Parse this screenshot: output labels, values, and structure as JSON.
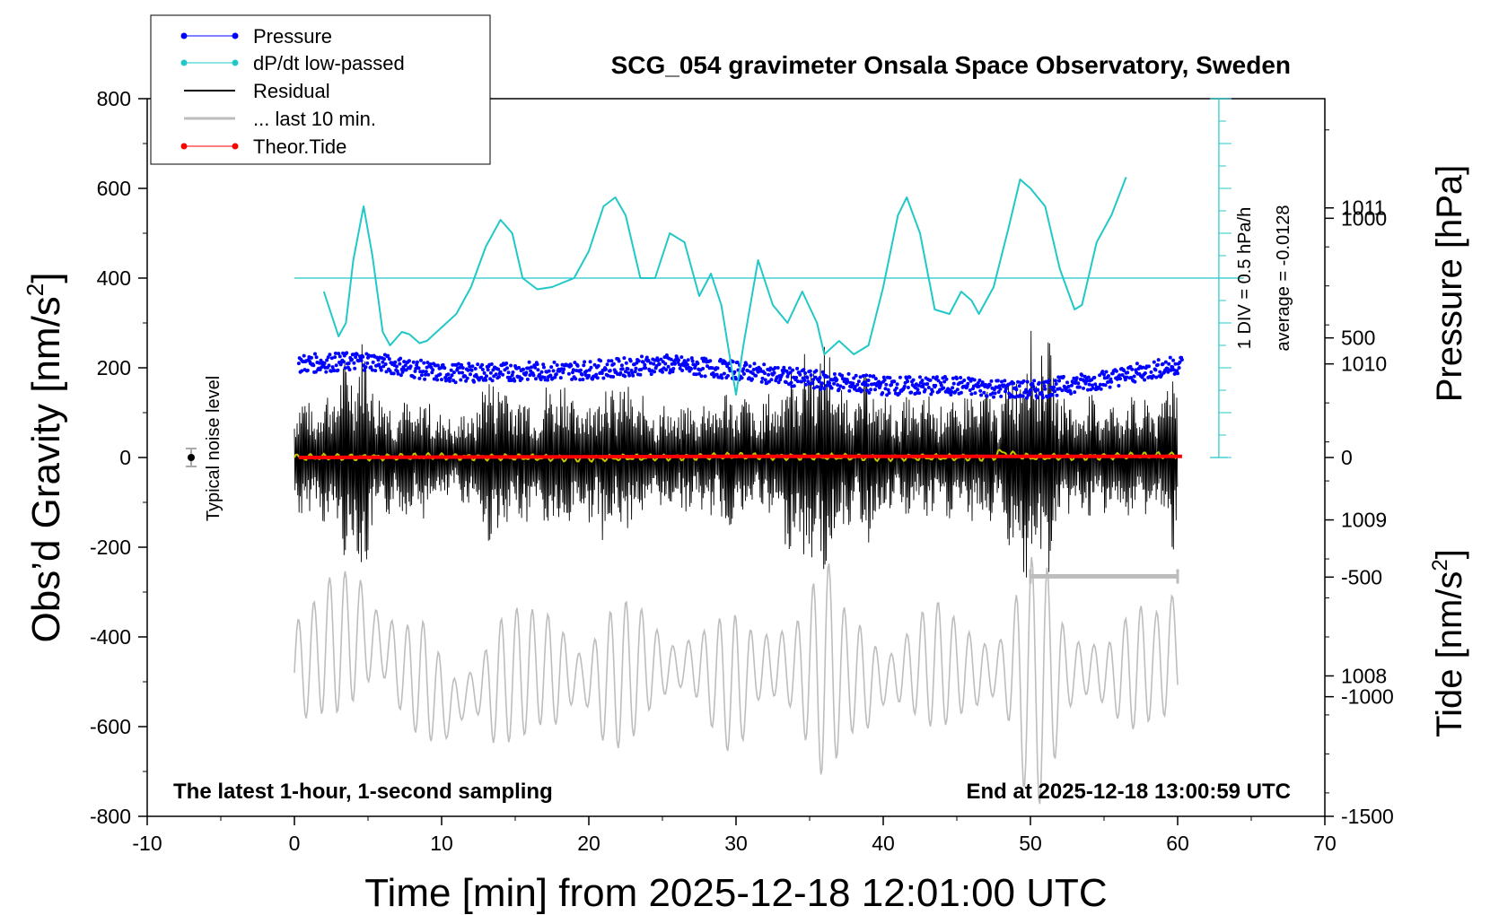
{
  "chart_data": {
    "type": "line",
    "title": "SCG_054 gravimeter Onsala Space Observatory, Sweden",
    "xlabel": "Time [min] from 2025-12-18 12:01:00 UTC",
    "ylabel_left": "Obs’d Gravity [nm/s2]",
    "ylabel_left_parts": {
      "text": "Obs’d Gravity [nm/s",
      "sup": "2",
      "close": "]"
    },
    "ylabel_right_top": "Pressure [hPa]",
    "ylabel_right_bottom": "Tide [nm/s2]",
    "ylabel_right_bottom_parts": {
      "text": "Tide [nm/s",
      "sup": "2",
      "close": "]"
    },
    "xlim": [
      -10,
      70
    ],
    "ylim": [
      -800,
      800
    ],
    "x_ticks": [
      "-10",
      "0",
      "10",
      "20",
      "30",
      "40",
      "50",
      "60",
      "70"
    ],
    "y_ticks": [
      "800",
      "600",
      "400",
      "200",
      "0",
      "-200",
      "-400",
      "-600",
      "-800"
    ],
    "pressure_ticks": [
      "1011",
      "1010",
      "1009",
      "1008"
    ],
    "tide_ticks": [
      "1000",
      "500",
      "0",
      "-500",
      "-1000",
      "-1500"
    ],
    "pressure_axis": {
      "values": [
        1011,
        1010,
        1009,
        1008
      ],
      "range": [
        1007.1,
        1011.7
      ]
    },
    "tide_axis": {
      "values": [
        1000,
        500,
        0,
        -500,
        -1000,
        -1500
      ],
      "range": [
        -1500,
        1500
      ]
    },
    "grid": false,
    "legend": {
      "position": "top-left",
      "entries": [
        {
          "label": "Pressure",
          "color": "#0000ff",
          "marker": "dot"
        },
        {
          "label": "dP/dt low-passed",
          "color": "#22c8c8",
          "marker": "dot"
        },
        {
          "label": "Residual",
          "color": "#000000",
          "marker": "none"
        },
        {
          "label": "... last 10 min.",
          "color": "#bdbdbd",
          "marker": "none"
        },
        {
          "label": "Theor.Tide",
          "color": "#ff0000",
          "marker": "dot"
        }
      ]
    },
    "annotations": {
      "noise_label": "Typical noise level",
      "dpdt_scale": "1 DIV = 0.5 hPa/h",
      "dpdt_average": "average = -0.0128",
      "bottom_left": "The latest 1-hour, 1-second sampling",
      "bottom_right": "End at 2025-12-18 13:00:59 UTC"
    },
    "series": [
      {
        "name": "Pressure",
        "color": "#0000ff",
        "unit": "hPa",
        "x": [
          0.3,
          5,
          10,
          15,
          20,
          25,
          30,
          35,
          40,
          45,
          50,
          55,
          60.3
        ],
        "y": [
          1010.0,
          1010.02,
          1009.94,
          1009.95,
          1009.96,
          1010.0,
          1009.96,
          1009.9,
          1009.86,
          1009.86,
          1009.83,
          1009.9,
          1010.0
        ]
      },
      {
        "name": "dP/dt low-passed",
        "color": "#22c8c8",
        "unit": "nm/s2 axis position",
        "x": [
          2,
          2.5,
          3,
          3.5,
          4,
          4.7,
          5.3,
          6,
          6.5,
          7.3,
          7.8,
          8.5,
          9,
          10,
          11,
          12,
          13,
          14,
          14.8,
          15.5,
          16.5,
          17.5,
          19,
          20,
          21,
          21.8,
          22.5,
          23.5,
          24.5,
          25.5,
          26.5,
          27.5,
          28.3,
          29,
          30,
          30.5,
          31.5,
          32.5,
          33.5,
          34.5,
          35.5,
          36,
          37,
          38,
          39,
          40,
          41,
          41.6,
          42.5,
          43.5,
          44.5,
          45.3,
          46,
          46.5,
          47.5,
          48.5,
          49.3,
          50,
          51,
          52,
          53,
          53.5,
          54.5,
          55.5,
          56.5
        ],
        "y": [
          370,
          320,
          270,
          300,
          440,
          560,
          450,
          280,
          250,
          280,
          275,
          255,
          260,
          290,
          320,
          380,
          470,
          530,
          500,
          400,
          375,
          380,
          400,
          460,
          560,
          580,
          540,
          400,
          400,
          500,
          480,
          360,
          410,
          340,
          140,
          250,
          440,
          340,
          300,
          370,
          300,
          230,
          260,
          230,
          250,
          380,
          540,
          580,
          500,
          330,
          320,
          370,
          350,
          320,
          380,
          510,
          620,
          600,
          560,
          420,
          330,
          340,
          480,
          540,
          625
        ]
      },
      {
        "name": "Residual",
        "color": "#000000",
        "unit": "nm/s2",
        "x": [
          0,
          1.5,
          3,
          4.5,
          6,
          7.5,
          9,
          10.5,
          12,
          13.5,
          15,
          16.5,
          18,
          19.5,
          21,
          22.5,
          24,
          25.5,
          27,
          28.5,
          30,
          31.5,
          33,
          34.5,
          36,
          37.5,
          39,
          40.5,
          42,
          43.5,
          45,
          46.5,
          48,
          49.5,
          51,
          52.5,
          54,
          55.5,
          57,
          58.5,
          60
        ],
        "y": [
          160,
          130,
          200,
          290,
          150,
          130,
          140,
          100,
          110,
          230,
          160,
          140,
          210,
          130,
          200,
          170,
          140,
          120,
          130,
          150,
          170,
          110,
          190,
          240,
          280,
          150,
          200,
          130,
          140,
          150,
          140,
          170,
          140,
          300,
          290,
          130,
          150,
          140,
          150,
          130,
          250
        ]
      },
      {
        "name": "Yellow filtered trace",
        "color": "#c8c800",
        "unit": "nm/s2",
        "x": [
          0,
          10,
          20,
          30,
          40,
          47.5,
          47.8,
          50,
          60
        ],
        "y": [
          0,
          2,
          -2,
          3,
          0,
          0,
          12,
          0,
          5
        ]
      },
      {
        "name": "... last 10 min.",
        "color": "#bdbdbd",
        "unit": "nm/s2",
        "x": [
          0,
          1.5,
          3,
          4.5,
          6,
          7.5,
          9,
          10.5,
          12,
          13.5,
          15,
          16.5,
          18,
          19.5,
          21,
          22.5,
          24,
          25.5,
          27,
          28.5,
          30,
          31.5,
          33,
          34.5,
          36,
          37.5,
          39,
          40.5,
          42,
          43.5,
          45,
          46.5,
          48,
          49.5,
          51,
          52.5,
          54,
          55.5,
          57,
          58.5,
          60
        ],
        "y": [
          -480,
          -440,
          -410,
          -400,
          -420,
          -480,
          -500,
          -560,
          -520,
          -510,
          -480,
          -470,
          -480,
          -490,
          -500,
          -480,
          -460,
          -470,
          -460,
          -490,
          -510,
          -470,
          -460,
          -480,
          -470,
          -480,
          -500,
          -490,
          -470,
          -460,
          -470,
          -480,
          -470,
          -490,
          -500,
          -480,
          -470,
          -490,
          -470,
          -460,
          -430
        ]
      },
      {
        "name": "last 10 min. bar",
        "color": "#bdbdbd",
        "unit": "nm/s2",
        "x": [
          50,
          60
        ],
        "y": [
          -265,
          -265
        ]
      },
      {
        "name": "Theor.Tide",
        "color": "#ff0000",
        "unit": "nm/s2 (tide axis)",
        "x": [
          0.3,
          30,
          60.3
        ],
        "y": [
          0,
          5,
          5
        ]
      }
    ],
    "noise_level": {
      "x": -7,
      "y": 0,
      "err": 20
    },
    "dpdt_zero_line": 400,
    "dpdt_axis_range": [
      0,
      800
    ]
  }
}
